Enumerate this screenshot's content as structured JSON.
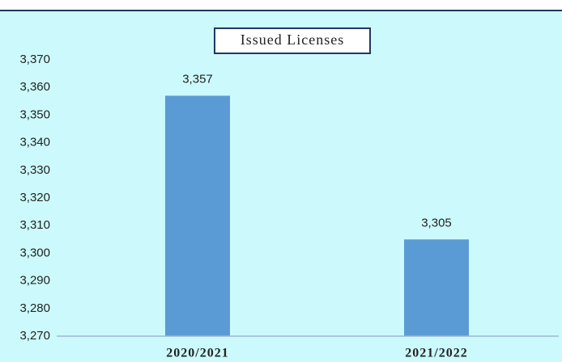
{
  "chart_data": {
    "type": "bar",
    "title": "Issued Licenses",
    "categories": [
      "2020/2021",
      "2021/2022"
    ],
    "values": [
      3357,
      3305
    ],
    "value_labels": [
      "3,357",
      "3,305"
    ],
    "color": "#5b9bd5",
    "ylim": [
      3270,
      3370
    ],
    "yticks": [
      {
        "value": 3270,
        "label": "3,270"
      },
      {
        "value": 3280,
        "label": "3,280"
      },
      {
        "value": 3290,
        "label": "3,290"
      },
      {
        "value": 3300,
        "label": "3,300"
      },
      {
        "value": 3310,
        "label": "3,310"
      },
      {
        "value": 3320,
        "label": "3,320"
      },
      {
        "value": 3330,
        "label": "3,330"
      },
      {
        "value": 3340,
        "label": "3,340"
      },
      {
        "value": 3350,
        "label": "3,350"
      },
      {
        "value": 3360,
        "label": "3,360"
      },
      {
        "value": 3370,
        "label": "3,370"
      }
    ],
    "grid": false
  }
}
